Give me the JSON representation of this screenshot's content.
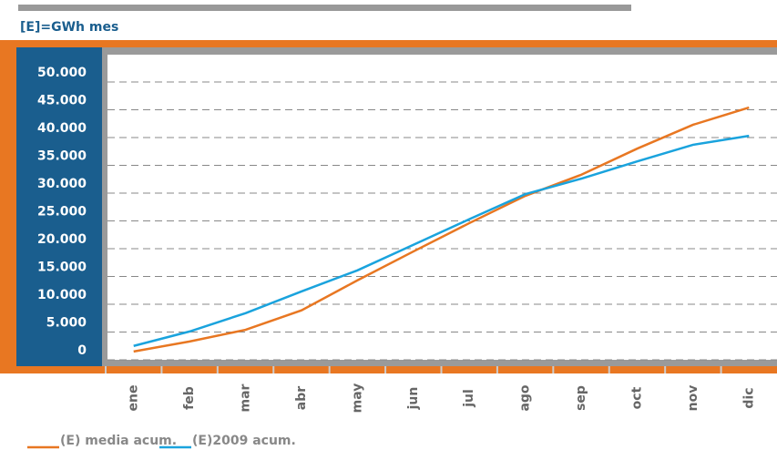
{
  "chart_data": {
    "type": "line",
    "unit_label": "[E]=GWh mes",
    "categories": [
      "ene",
      "feb",
      "mar",
      "abr",
      "may",
      "jun",
      "jul",
      "ago",
      "sep",
      "oct",
      "nov",
      "dic"
    ],
    "series": [
      {
        "name": "(E) media acum.",
        "color": "#e87722",
        "values": [
          1500,
          3300,
          5400,
          8900,
          14300,
          19500,
          24600,
          29500,
          33300,
          38000,
          42300,
          45400
        ]
      },
      {
        "name": "(E)2009 acum.",
        "color": "#1aa3dd",
        "values": [
          2500,
          5100,
          8400,
          12300,
          16100,
          20700,
          25300,
          29800,
          32600,
          35700,
          38700,
          40300
        ]
      }
    ],
    "ylim": [
      0,
      55000
    ],
    "yticks": [
      0,
      {
        "value": 5000,
        "label": "5.000"
      },
      {
        "value": 10000,
        "label": "10.000"
      },
      {
        "value": 15000,
        "label": "15.000"
      },
      {
        "value": 20000,
        "label": "20.000"
      },
      {
        "value": 25000,
        "label": "25.000"
      },
      {
        "value": 30000,
        "label": "30.000"
      },
      {
        "value": 35000,
        "label": "35.000"
      },
      {
        "value": 40000,
        "label": "40.000"
      },
      {
        "value": 45000,
        "label": "45.000"
      },
      {
        "value": 50000,
        "label": "50.000"
      }
    ],
    "grid": true
  }
}
